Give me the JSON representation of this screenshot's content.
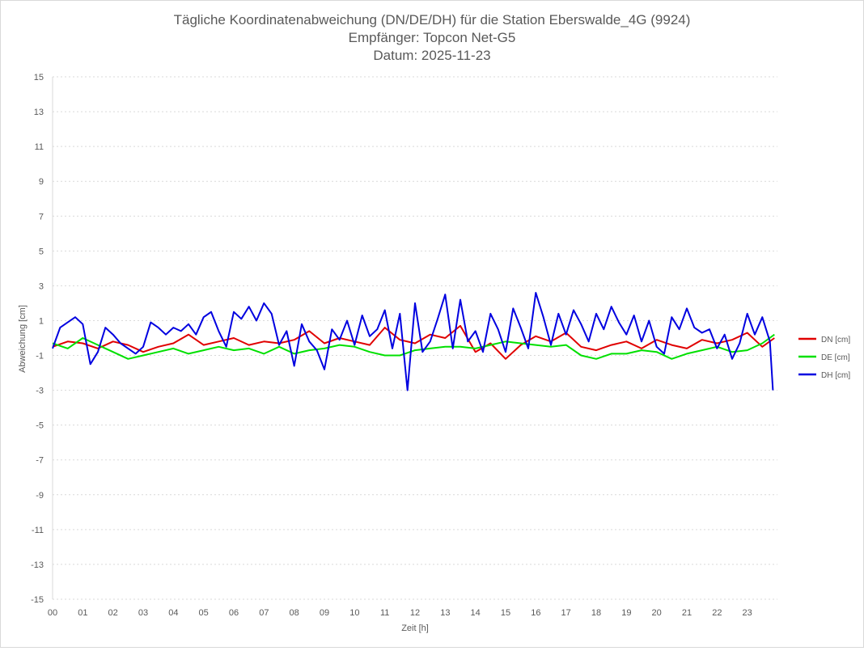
{
  "chart_data": {
    "type": "line",
    "title": "Tägliche Koordinatenabweichung (DN/DE/DH) für die Station Eberswalde_4G (9924)",
    "subtitle_receiver": "Empfänger: Topcon Net-G5",
    "subtitle_date": "Datum: 2025-11-23",
    "xlabel": "Zeit [h]",
    "ylabel": "Abweichung [cm]",
    "xlim": [
      0,
      24
    ],
    "ylim": [
      -15,
      15
    ],
    "x_ticks": [
      "00",
      "01",
      "02",
      "03",
      "04",
      "05",
      "06",
      "07",
      "08",
      "09",
      "10",
      "11",
      "12",
      "13",
      "14",
      "15",
      "16",
      "17",
      "18",
      "19",
      "20",
      "21",
      "22",
      "23"
    ],
    "y_ticks": [
      "15",
      "13",
      "11",
      "9",
      "7",
      "5",
      "3",
      "1",
      "-1",
      "-3",
      "-5",
      "-7",
      "-9",
      "-11",
      "-13",
      "-15"
    ],
    "grid": true,
    "legend_position": "right",
    "series": [
      {
        "name": "DN [cm]",
        "color": "#e00000",
        "x": [
          0,
          0.5,
          1,
          1.5,
          2,
          2.5,
          3,
          3.5,
          4,
          4.5,
          5,
          5.5,
          6,
          6.5,
          7,
          7.5,
          8,
          8.5,
          9,
          9.5,
          10,
          10.5,
          11,
          11.5,
          12,
          12.5,
          13,
          13.5,
          14,
          14.5,
          15,
          15.5,
          16,
          16.5,
          17,
          17.5,
          18,
          18.5,
          19,
          19.5,
          20,
          20.5,
          21,
          21.5,
          22,
          22.5,
          23,
          23.5,
          23.9
        ],
        "values": [
          -0.5,
          -0.2,
          -0.3,
          -0.6,
          -0.2,
          -0.4,
          -0.8,
          -0.5,
          -0.3,
          0.2,
          -0.4,
          -0.2,
          0,
          -0.4,
          -0.2,
          -0.3,
          -0.1,
          0.4,
          -0.3,
          0,
          -0.2,
          -0.4,
          0.6,
          -0.1,
          -0.3,
          0.2,
          0,
          0.7,
          -0.8,
          -0.3,
          -1.2,
          -0.4,
          0.1,
          -0.2,
          0.3,
          -0.5,
          -0.7,
          -0.4,
          -0.2,
          -0.6,
          -0.1,
          -0.4,
          -0.6,
          -0.1,
          -0.3,
          -0.1,
          0.3,
          -0.5,
          0
        ]
      },
      {
        "name": "DE [cm]",
        "color": "#00e000",
        "x": [
          0,
          0.5,
          1,
          1.5,
          2,
          2.5,
          3,
          3.5,
          4,
          4.5,
          5,
          5.5,
          6,
          6.5,
          7,
          7.5,
          8,
          8.5,
          9,
          9.5,
          10,
          10.5,
          11,
          11.5,
          12,
          12.5,
          13,
          13.5,
          14,
          14.5,
          15,
          15.5,
          16,
          16.5,
          17,
          17.5,
          18,
          18.5,
          19,
          19.5,
          20,
          20.5,
          21,
          21.5,
          22,
          22.5,
          23,
          23.5,
          23.9
        ],
        "values": [
          -0.3,
          -0.6,
          0,
          -0.4,
          -0.8,
          -1.2,
          -1,
          -0.8,
          -0.6,
          -0.9,
          -0.7,
          -0.5,
          -0.7,
          -0.6,
          -0.9,
          -0.5,
          -0.9,
          -0.7,
          -0.6,
          -0.4,
          -0.5,
          -0.8,
          -1,
          -1,
          -0.7,
          -0.6,
          -0.5,
          -0.5,
          -0.6,
          -0.4,
          -0.2,
          -0.3,
          -0.4,
          -0.5,
          -0.4,
          -1,
          -1.2,
          -0.9,
          -0.9,
          -0.7,
          -0.8,
          -1.2,
          -0.9,
          -0.7,
          -0.5,
          -0.8,
          -0.7,
          -0.3,
          0.2
        ]
      },
      {
        "name": "DH [cm]",
        "color": "#0000e0",
        "x": [
          0,
          0.25,
          0.5,
          0.75,
          1,
          1.25,
          1.5,
          1.75,
          2,
          2.25,
          2.5,
          2.75,
          3,
          3.25,
          3.5,
          3.75,
          4,
          4.25,
          4.5,
          4.75,
          5,
          5.25,
          5.5,
          5.75,
          6,
          6.25,
          6.5,
          6.75,
          7,
          7.25,
          7.5,
          7.75,
          8,
          8.25,
          8.5,
          8.75,
          9,
          9.25,
          9.5,
          9.75,
          10,
          10.25,
          10.5,
          10.75,
          11,
          11.25,
          11.5,
          11.75,
          12,
          12.25,
          12.5,
          12.75,
          13,
          13.25,
          13.5,
          13.75,
          14,
          14.25,
          14.5,
          14.75,
          15,
          15.25,
          15.5,
          15.75,
          16,
          16.25,
          16.5,
          16.75,
          17,
          17.25,
          17.5,
          17.75,
          18,
          18.25,
          18.5,
          18.75,
          19,
          19.25,
          19.5,
          19.75,
          20,
          20.25,
          20.5,
          20.75,
          21,
          21.25,
          21.5,
          21.75,
          22,
          22.25,
          22.5,
          22.75,
          23,
          23.25,
          23.5,
          23.75,
          23.85
        ],
        "values": [
          -0.6,
          0.6,
          0.9,
          1.2,
          0.8,
          -1.5,
          -0.8,
          0.6,
          0.2,
          -0.3,
          -0.6,
          -0.9,
          -0.5,
          0.9,
          0.6,
          0.2,
          0.6,
          0.4,
          0.8,
          0.2,
          1.2,
          1.5,
          0.4,
          -0.5,
          1.5,
          1.1,
          1.8,
          1,
          2,
          1.4,
          -0.4,
          0.4,
          -1.6,
          0.8,
          -0.2,
          -0.7,
          -1.8,
          0.5,
          -0.1,
          1,
          -0.4,
          1.3,
          0.1,
          0.5,
          1.6,
          -0.6,
          1.4,
          -3,
          2,
          -0.8,
          -0.2,
          1.1,
          2.5,
          -0.6,
          2.2,
          -0.2,
          0.4,
          -0.8,
          1.4,
          0.5,
          -0.8,
          1.7,
          0.6,
          -0.6,
          2.6,
          1.2,
          -0.4,
          1.4,
          0.2,
          1.6,
          0.8,
          -0.2,
          1.4,
          0.5,
          1.8,
          0.9,
          0.2,
          1.3,
          -0.2,
          1,
          -0.5,
          -0.9,
          1.2,
          0.5,
          1.7,
          0.6,
          0.3,
          0.5,
          -0.6,
          0.2,
          -1.2,
          -0.3,
          1.4,
          0.2,
          1.2,
          -0.2,
          -3
        ]
      }
    ]
  }
}
